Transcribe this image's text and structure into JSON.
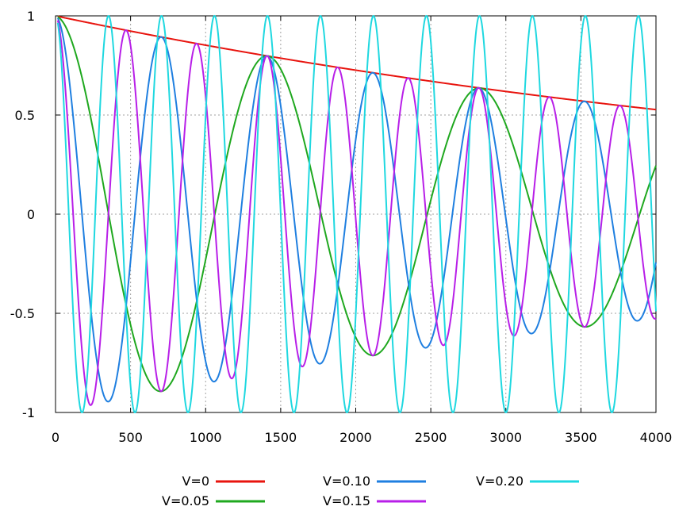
{
  "chart_data": {
    "type": "line",
    "title": "",
    "xlabel": "",
    "ylabel": "",
    "xlim": [
      0,
      4000
    ],
    "ylim": [
      -1,
      1
    ],
    "grid": true,
    "legend_position": "bottom",
    "x_ticks": [
      0,
      500,
      1000,
      1500,
      2000,
      2500,
      3000,
      3500,
      4000
    ],
    "x_tick_labels": [
      "0",
      "500",
      "1000",
      "1500",
      "2000",
      "2500",
      "3000",
      "3500",
      "4000"
    ],
    "y_ticks": [
      1,
      0.5,
      0,
      -0.5,
      -1
    ],
    "y_tick_labels": [
      "1",
      "0.5",
      "0",
      "-0.5",
      "-1"
    ],
    "x_sample": [
      0,
      250,
      500,
      750,
      1000,
      1250,
      1500,
      1750,
      2000,
      2250,
      2500,
      2750,
      3000,
      3250,
      3500,
      3750,
      4000
    ],
    "series": [
      {
        "name": "V=0",
        "color": "#e8140e",
        "period": null,
        "decay": 0.00016,
        "values": [
          1.0,
          0.96,
          0.923,
          0.887,
          0.852,
          0.819,
          0.787,
          0.756,
          0.726,
          0.698,
          0.67,
          0.644,
          0.619,
          0.595,
          0.571,
          0.549,
          0.527
        ]
      },
      {
        "name": "V=0.05",
        "color": "#1fa81f",
        "period": 1415,
        "decay": 0.00016,
        "values": [
          1.0,
          0.43,
          -0.48,
          -0.88,
          -0.51,
          0.37,
          0.78,
          0.42,
          -0.31,
          -0.68,
          -0.34,
          0.26,
          0.6,
          0.28,
          -0.23,
          -0.52,
          0.27
        ]
      },
      {
        "name": "V=0.10",
        "color": "#1f7fe0",
        "period": 705,
        "decay": 0.00016,
        "values": [
          1.0,
          -0.57,
          -0.84,
          0.83,
          0.53,
          -0.78,
          -0.65,
          0.71,
          0.62,
          -0.65,
          -0.56,
          0.6,
          0.44,
          -0.63,
          0.57,
          -0.55,
          -0.33
        ]
      },
      {
        "name": "V=0.15",
        "color": "#b81fe8",
        "period": 470,
        "decay": 0.00016,
        "values": [
          1.0,
          -0.97,
          0.91,
          -0.83,
          0.86,
          -0.8,
          0.77,
          -0.72,
          0.73,
          -0.67,
          0.63,
          -0.62,
          0.59,
          -0.57,
          0.55,
          -0.53,
          -0.74
        ]
      },
      {
        "name": "V=0.20",
        "color": "#1fd8e0",
        "period": 353,
        "decay": 0.0,
        "values": [
          1.0,
          -0.98,
          0.98,
          -0.98,
          0.98,
          -0.98,
          0.98,
          -0.98,
          0.98,
          -0.98,
          0.98,
          -0.98,
          0.98,
          -0.98,
          0.98,
          -0.98,
          -0.45
        ]
      }
    ]
  }
}
